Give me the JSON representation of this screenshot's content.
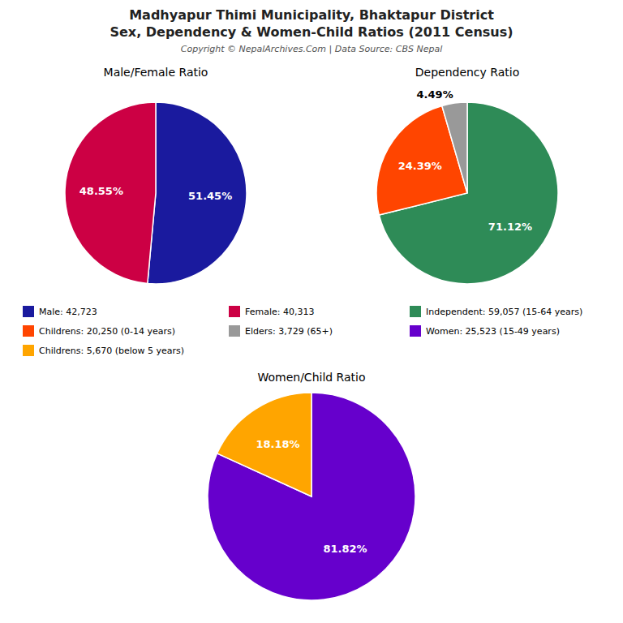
{
  "title": [
    "Madhyapur Thimi Municipality, Bhaktapur District",
    "Sex, Dependency & Women-Child Ratios (2011 Census)"
  ],
  "subtitle": "Copyright © NepalArchives.Com | Data Source: CBS Nepal",
  "chart_data": [
    {
      "type": "pie",
      "title": "Male/Female Ratio",
      "categories": [
        "Male: 42,723",
        "Female: 40,313"
      ],
      "values": [
        51.45,
        48.55
      ],
      "value_labels": [
        "51.45%",
        "48.55%"
      ],
      "colors": [
        "#1A1A9E",
        "#CC0044"
      ],
      "data_labels": true
    },
    {
      "type": "pie",
      "title": "Dependency Ratio",
      "categories": [
        "Independent: 59,057 (15-64 years)",
        "Childrens: 20,250 (0-14 years)",
        "Elders: 3,729 (65+)"
      ],
      "values": [
        71.12,
        24.39,
        4.49
      ],
      "value_labels": [
        "71.12%",
        "24.39%",
        "4.49%"
      ],
      "colors": [
        "#2E8B57",
        "#FF4500",
        "#999999"
      ],
      "data_labels": true
    },
    {
      "type": "pie",
      "title": "Women/Child Ratio",
      "categories": [
        "Women: 25,523 (15-49 years)",
        "Childrens: 5,670 (below 5 years)"
      ],
      "values": [
        81.82,
        18.18
      ],
      "value_labels": [
        "81.82%",
        "18.18%"
      ],
      "colors": [
        "#6600CC",
        "#FFA500"
      ],
      "data_labels": true
    }
  ]
}
